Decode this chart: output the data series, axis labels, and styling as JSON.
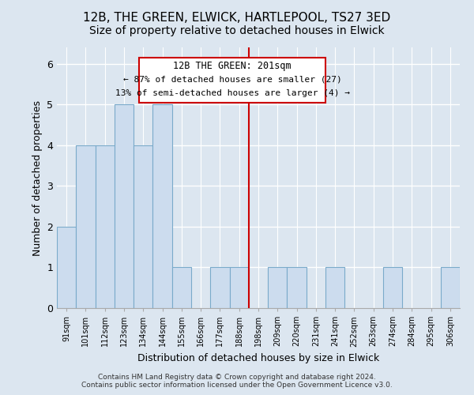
{
  "title1": "12B, THE GREEN, ELWICK, HARTLEPOOL, TS27 3ED",
  "title2": "Size of property relative to detached houses in Elwick",
  "xlabel": "Distribution of detached houses by size in Elwick",
  "ylabel": "Number of detached properties",
  "categories": [
    "91sqm",
    "101sqm",
    "112sqm",
    "123sqm",
    "134sqm",
    "144sqm",
    "155sqm",
    "166sqm",
    "177sqm",
    "188sqm",
    "198sqm",
    "209sqm",
    "220sqm",
    "231sqm",
    "241sqm",
    "252sqm",
    "263sqm",
    "274sqm",
    "284sqm",
    "295sqm",
    "306sqm"
  ],
  "values": [
    2,
    4,
    4,
    5,
    4,
    5,
    1,
    0,
    1,
    1,
    0,
    1,
    1,
    0,
    1,
    0,
    0,
    1,
    0,
    0,
    1
  ],
  "bar_color": "#ccdcee",
  "bar_edge_color": "#7aaaca",
  "subject_line_color": "#cc0000",
  "annotation_box_color": "#ffffff",
  "annotation_box_edge_color": "#cc0000",
  "annotation_title": "12B THE GREEN: 201sqm",
  "annotation_line1": "← 87% of detached houses are smaller (27)",
  "annotation_line2": "13% of semi-detached houses are larger (4) →",
  "ylim": [
    0,
    6.4
  ],
  "yticks": [
    0,
    1,
    2,
    3,
    4,
    5,
    6
  ],
  "footer1": "Contains HM Land Registry data © Crown copyright and database right 2024.",
  "footer2": "Contains public sector information licensed under the Open Government Licence v3.0.",
  "bg_color": "#dce6f0",
  "plot_bg_color": "#dce6f0",
  "grid_color": "#ffffff",
  "title_fontsize": 11,
  "subtitle_fontsize": 10
}
